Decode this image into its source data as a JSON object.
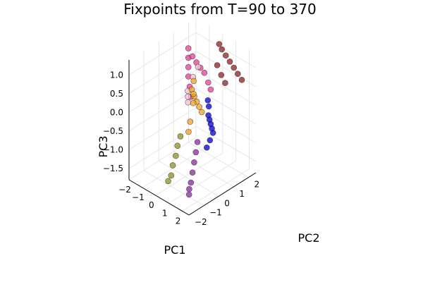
{
  "chart_data": {
    "type": "scatter",
    "projection": "3d",
    "title": "Fixpoints from T=90 to 370",
    "xlabel": "PC1",
    "ylabel": "PC2",
    "zlabel": "PC3",
    "xlim": [
      -2,
      2.5
    ],
    "ylim": [
      -2,
      2.5
    ],
    "zlim": [
      -1.8,
      1.4
    ],
    "xticks": [
      "−2",
      "−1",
      "0",
      "1",
      "2"
    ],
    "yticks": [
      "−2",
      "−1",
      "0",
      "1",
      "2"
    ],
    "zticks": [
      "1.0",
      "0.5",
      "0.0",
      "−0.5",
      "−1.0",
      "−1.5"
    ],
    "grid": true,
    "legend": "none",
    "series": [
      {
        "color": "#8b2020",
        "points": [
          [
            0.3,
            2.0,
            1.3
          ],
          [
            0.5,
            2.0,
            1.2
          ],
          [
            0.8,
            2.0,
            1.1
          ],
          [
            1.1,
            2.0,
            1.0
          ],
          [
            1.4,
            2.0,
            0.9
          ],
          [
            1.7,
            2.0,
            0.8
          ],
          [
            2.0,
            2.0,
            0.7
          ],
          [
            0.6,
            1.6,
            0.9
          ],
          [
            0.9,
            1.6,
            0.7
          ],
          [
            1.2,
            1.6,
            0.55
          ]
        ]
      },
      {
        "color": "#e0409a",
        "points": [
          [
            -1.9,
            1.9,
            0.75
          ],
          [
            -1.6,
            1.9,
            0.6
          ],
          [
            -1.3,
            1.9,
            0.5
          ],
          [
            -1.0,
            1.9,
            0.42
          ],
          [
            -0.7,
            1.9,
            0.35
          ],
          [
            -1.9,
            1.9,
            0.5
          ],
          [
            -1.9,
            1.9,
            0.25
          ],
          [
            -1.9,
            1.9,
            0.0
          ],
          [
            -1.8,
            1.9,
            -0.25
          ],
          [
            -1.7,
            1.9,
            -0.5
          ],
          [
            -0.3,
            1.8,
            0.2
          ],
          [
            0.0,
            1.7,
            0.1
          ]
        ]
      },
      {
        "color": "#0000cc",
        "points": [
          [
            1.5,
            0.2,
            0.1
          ],
          [
            1.7,
            0.1,
            0.05
          ],
          [
            1.9,
            0.0,
            0.0
          ],
          [
            2.1,
            -0.1,
            -0.05
          ],
          [
            2.3,
            -0.2,
            -0.1
          ],
          [
            1.2,
            0.5,
            0.2
          ],
          [
            0.9,
            0.7,
            0.25
          ],
          [
            2.4,
            -0.5,
            -0.2
          ],
          [
            2.5,
            -0.8,
            -0.3
          ]
        ]
      },
      {
        "color": "#8a2a9a",
        "points": [
          [
            1.8,
            -0.8,
            -0.3
          ],
          [
            1.9,
            -1.0,
            -0.5
          ],
          [
            2.0,
            -1.2,
            -0.7
          ],
          [
            2.1,
            -1.4,
            -0.9
          ],
          [
            2.2,
            -1.6,
            -1.1
          ],
          [
            2.3,
            -1.8,
            -1.2
          ],
          [
            2.4,
            -1.9,
            -1.3
          ]
        ]
      },
      {
        "color": "#f0a020",
        "points": [
          [
            -1.2,
            1.5,
            -0.1
          ],
          [
            -0.9,
            1.4,
            -0.2
          ],
          [
            -0.6,
            1.3,
            -0.25
          ],
          [
            -0.3,
            1.2,
            -0.3
          ],
          [
            0.0,
            1.1,
            -0.35
          ],
          [
            -0.5,
            1.0,
            0.4
          ],
          [
            -0.4,
            0.9,
            0.1
          ],
          [
            -0.3,
            0.8,
            -0.1
          ],
          [
            -0.2,
            0.5,
            -0.5
          ],
          [
            -0.1,
            0.3,
            -0.7
          ]
        ]
      },
      {
        "color": "#8f8f1e",
        "points": [
          [
            -0.6,
            0.2,
            -0.9
          ],
          [
            -0.6,
            0.0,
            -1.1
          ],
          [
            -0.5,
            -0.2,
            -1.3
          ],
          [
            -0.5,
            -0.4,
            -1.5
          ],
          [
            -0.4,
            -0.6,
            -1.7
          ],
          [
            -0.4,
            -0.8,
            -1.8
          ]
        ]
      },
      {
        "color": "#f4c0d0",
        "points": [
          [
            -1.7,
            1.7,
            -0.6
          ],
          [
            -1.6,
            1.6,
            -0.4
          ],
          [
            -1.5,
            1.5,
            -0.2
          ],
          [
            -1.0,
            1.4,
            0.3
          ],
          [
            -0.5,
            1.3,
            0.7
          ]
        ]
      }
    ]
  }
}
